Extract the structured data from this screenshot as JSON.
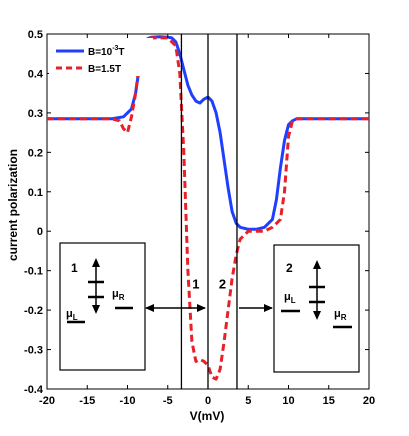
{
  "chart_data": {
    "type": "line",
    "xlabel": "V(mV)",
    "ylabel": "current polarization",
    "xlim": [
      -20,
      20
    ],
    "ylim": [
      -0.4,
      0.5
    ],
    "xticks": [
      "-20",
      "-15",
      "-10",
      "-5",
      "0",
      "5",
      "10",
      "15",
      "20"
    ],
    "yticks": [
      "-0.4",
      "-0.3",
      "-0.2",
      "-0.1",
      "0",
      "0.1",
      "0.2",
      "0.3",
      "0.4",
      "0.5"
    ],
    "grid": false,
    "legend": "top-left",
    "series": [
      {
        "name": "B=10^{-3}T",
        "label_main": "B=10",
        "label_sup": "-3",
        "label_tail": "T",
        "color": "#1f3fff",
        "style": "solid",
        "x": [
          -20,
          -12,
          -10.5,
          -9.5,
          -9,
          -8.5,
          -8,
          -7.5,
          -7,
          -6,
          -5,
          -4.5,
          -4,
          -3.5,
          -3,
          -2.5,
          -2,
          -1.5,
          -1,
          -0.5,
          0,
          0.5,
          1,
          1.5,
          2,
          2.5,
          3,
          3.5,
          4,
          5,
          6,
          7,
          8,
          8.5,
          9,
          9.5,
          10,
          10.5,
          11,
          12,
          20
        ],
        "y": [
          0.285,
          0.285,
          0.29,
          0.31,
          0.35,
          0.42,
          0.47,
          0.488,
          0.492,
          0.493,
          0.492,
          0.49,
          0.48,
          0.45,
          0.41,
          0.37,
          0.345,
          0.33,
          0.325,
          0.335,
          0.34,
          0.33,
          0.3,
          0.25,
          0.18,
          0.11,
          0.05,
          0.02,
          0.01,
          0.005,
          0.005,
          0.01,
          0.03,
          0.08,
          0.16,
          0.23,
          0.27,
          0.28,
          0.285,
          0.285,
          0.285
        ]
      },
      {
        "name": "B=1.5T",
        "color": "#e8202a",
        "style": "dashed",
        "x": [
          -20,
          -12,
          -11,
          -10.5,
          -10,
          -9.5,
          -9,
          -8.5,
          -8,
          -7.5,
          -7,
          -6,
          -5,
          -4,
          -3.5,
          -3,
          -2.5,
          -2,
          -1.5,
          -1,
          -0.5,
          0,
          0.5,
          1,
          1.5,
          2,
          2.5,
          3,
          3.5,
          4,
          5,
          6,
          7,
          8,
          9,
          9.5,
          10,
          10.5,
          11,
          12,
          20
        ],
        "y": [
          0.285,
          0.285,
          0.28,
          0.26,
          0.25,
          0.29,
          0.35,
          0.43,
          0.48,
          0.49,
          0.49,
          0.49,
          0.49,
          0.47,
          0.4,
          0.2,
          -0.1,
          -0.28,
          -0.33,
          -0.325,
          -0.33,
          -0.34,
          -0.37,
          -0.375,
          -0.35,
          -0.28,
          -0.2,
          -0.12,
          -0.06,
          -0.02,
          0.0,
          0.0,
          0.0,
          0.01,
          0.03,
          0.1,
          0.24,
          0.28,
          0.285,
          0.285,
          0.285
        ]
      }
    ],
    "vertical_lines": [
      -3.3,
      0,
      3.6
    ],
    "annotations": [
      {
        "text": "1",
        "x": -1.5,
        "y": -0.145
      },
      {
        "text": "2",
        "x": 1.8,
        "y": -0.145
      }
    ],
    "insets": [
      {
        "number": "1",
        "mu_left": "μ",
        "mu_left_sub": "L",
        "mu_right": "μ",
        "mu_right_sub": "R"
      },
      {
        "number": "2",
        "mu_left": "μ",
        "mu_left_sub": "L",
        "mu_right": "μ",
        "mu_right_sub": "R"
      }
    ]
  }
}
